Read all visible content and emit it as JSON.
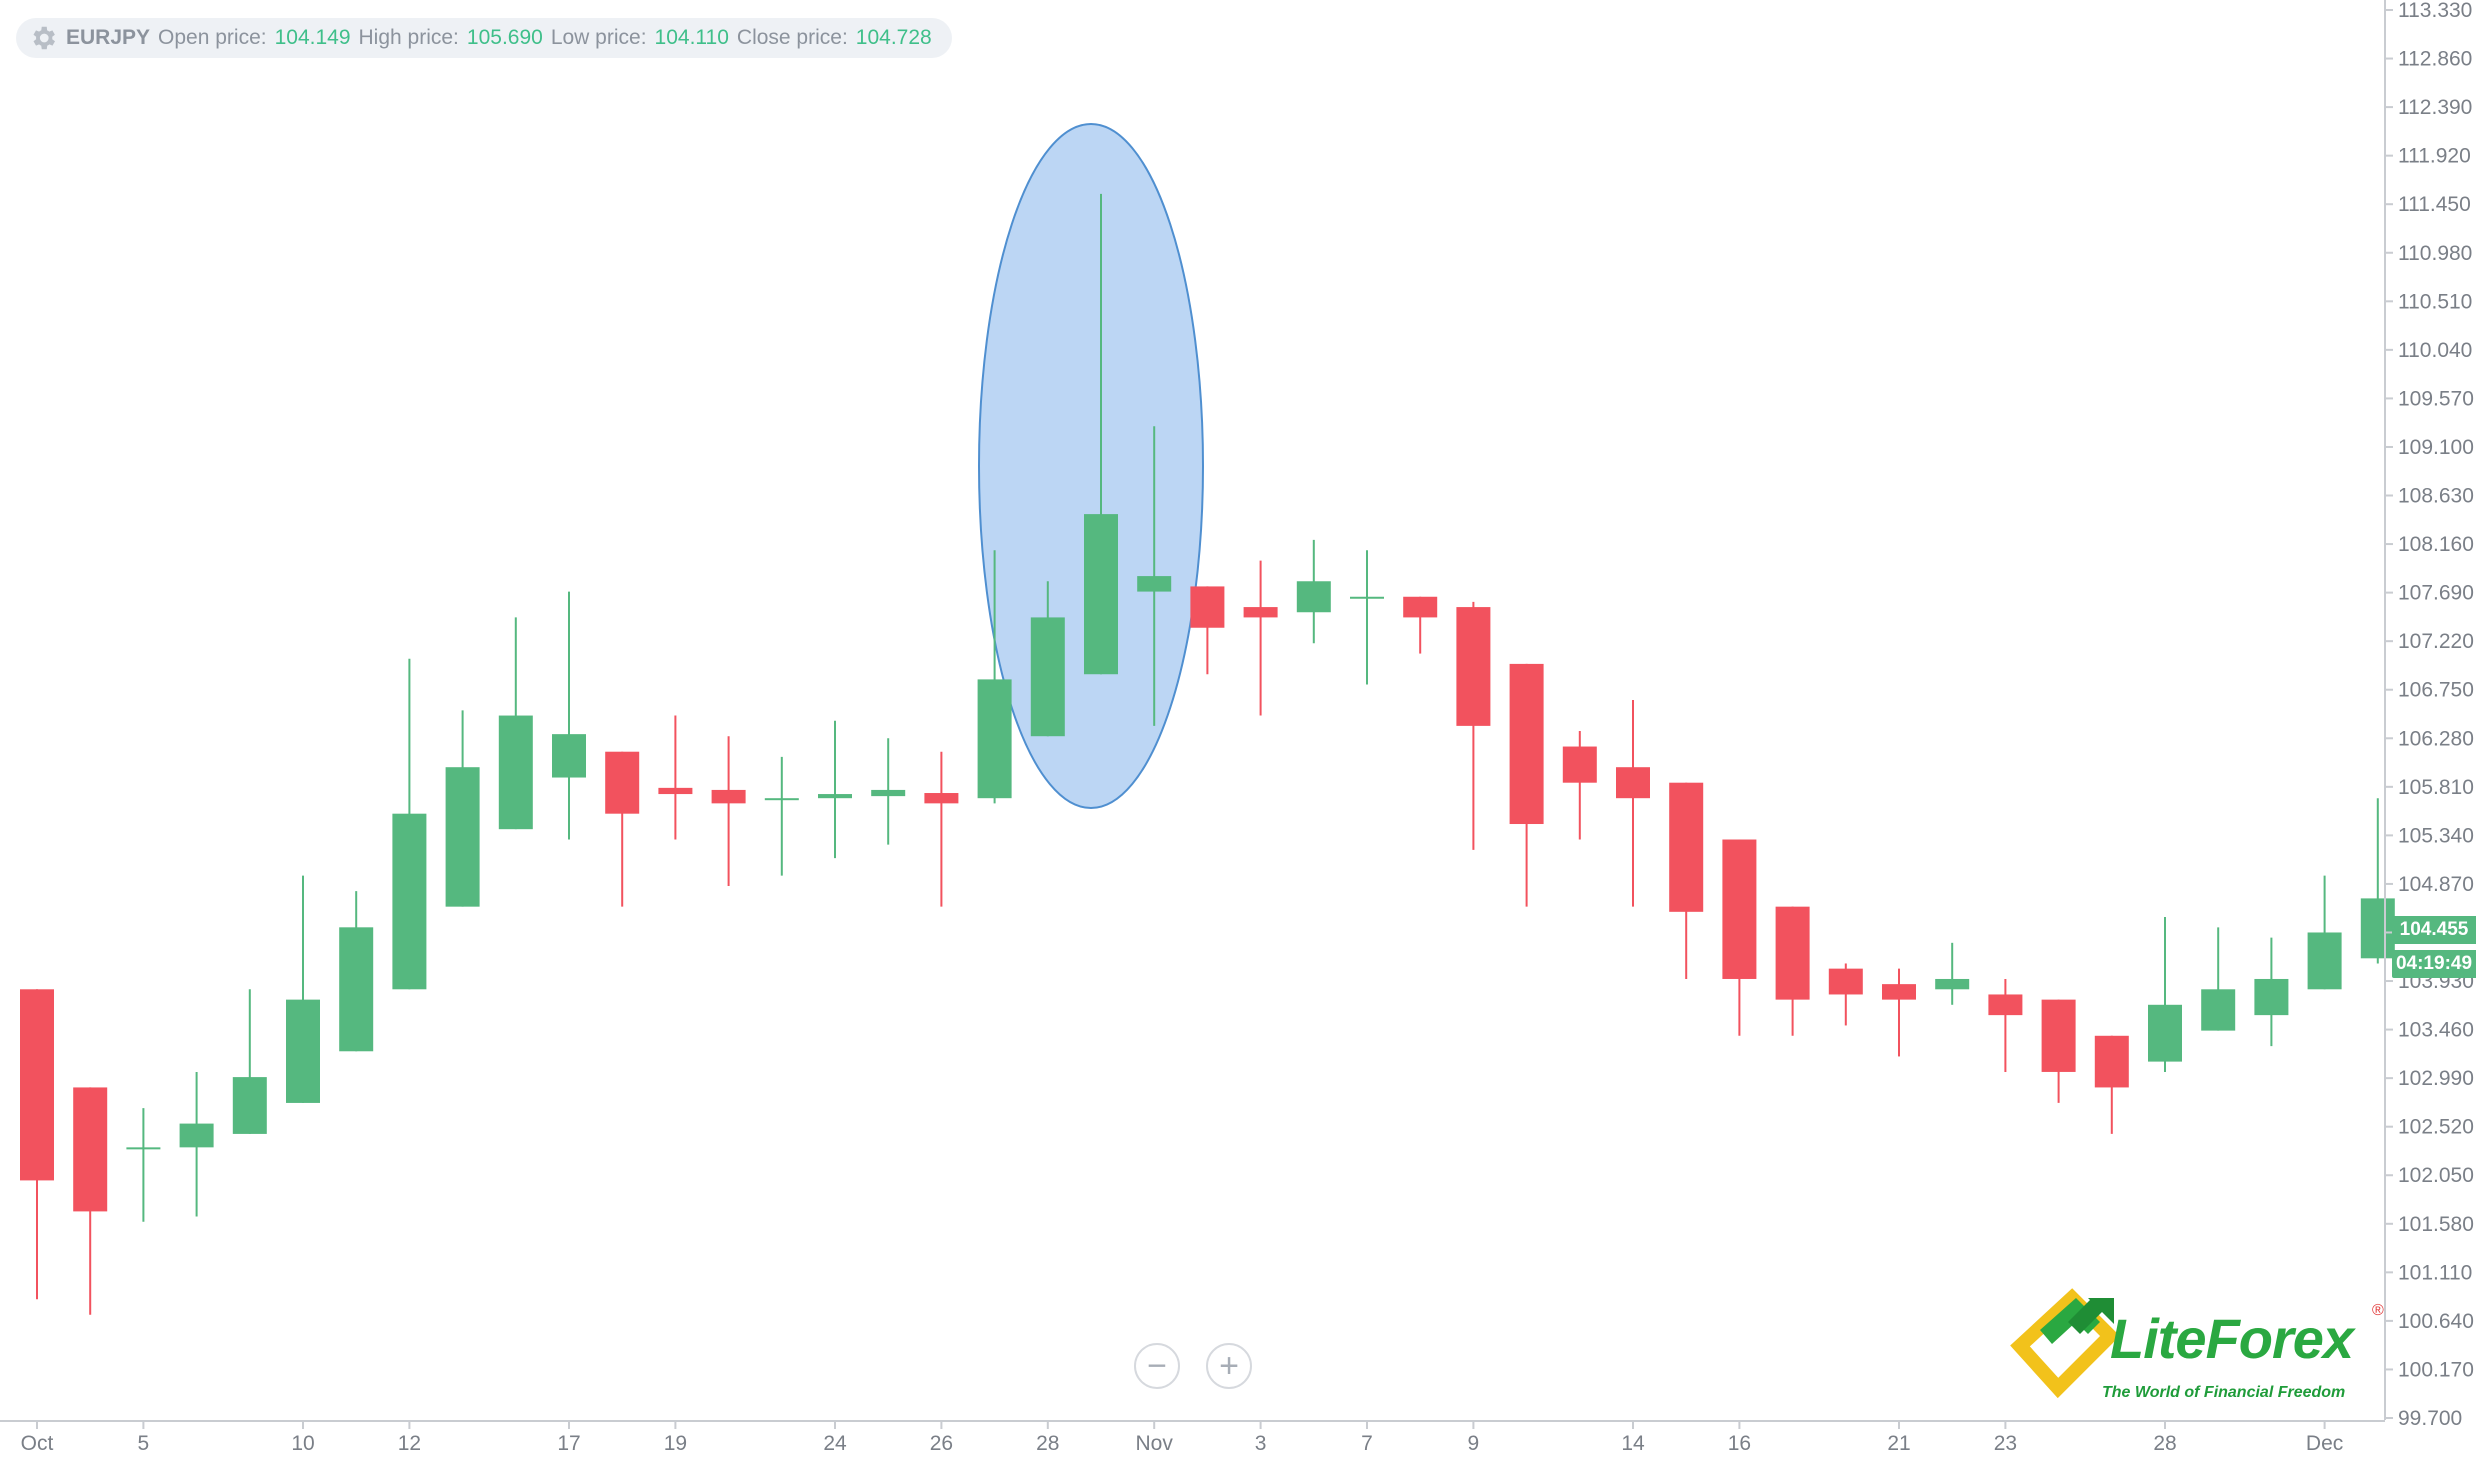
{
  "info": {
    "symbol": "EURJPY",
    "open_label": "Open price:",
    "open_value": "104.149",
    "high_label": "High price:",
    "high_value": "105.690",
    "low_label": "Low price:",
    "low_value": "104.110",
    "close_label": "Close price:",
    "close_value": "104.728"
  },
  "price_tag": {
    "price": "104.455",
    "timer": "04:19:49"
  },
  "zoom": {
    "out_label": "−",
    "in_label": "+"
  },
  "logo": {
    "name_part1": "Lite",
    "name_part2": "Forex",
    "registered": "®",
    "tagline": "The World of Financial Freedom"
  },
  "colors": {
    "up": "#55b87f",
    "down": "#f2525e",
    "highlight": "#9fc5ef",
    "highlight_stroke": "#4f8fd0",
    "grid_axis": "#c9ccd1"
  },
  "chart_data": {
    "type": "candlestick",
    "title": "",
    "symbol": "EURJPY",
    "ylim": [
      99.7,
      113.33
    ],
    "y_ticks": [
      "113.330",
      "112.860",
      "112.390",
      "111.920",
      "111.450",
      "110.980",
      "110.510",
      "110.040",
      "109.570",
      "109.100",
      "108.630",
      "108.160",
      "107.690",
      "107.220",
      "106.750",
      "106.280",
      "105.810",
      "105.340",
      "104.870",
      "104.400",
      "103.930",
      "103.460",
      "102.990",
      "102.520",
      "102.050",
      "101.580",
      "101.110",
      "100.640",
      "100.170",
      "99.700"
    ],
    "x_ticks": [
      {
        "label": "Oct",
        "index": 0
      },
      {
        "label": "5",
        "index": 2
      },
      {
        "label": "10",
        "index": 5
      },
      {
        "label": "12",
        "index": 7
      },
      {
        "label": "17",
        "index": 10
      },
      {
        "label": "19",
        "index": 12
      },
      {
        "label": "24",
        "index": 15
      },
      {
        "label": "26",
        "index": 17
      },
      {
        "label": "28",
        "index": 19
      },
      {
        "label": "Nov",
        "index": 21
      },
      {
        "label": "3",
        "index": 23
      },
      {
        "label": "7",
        "index": 25
      },
      {
        "label": "9",
        "index": 27
      },
      {
        "label": "14",
        "index": 30
      },
      {
        "label": "16",
        "index": 32
      },
      {
        "label": "21",
        "index": 35
      },
      {
        "label": "23",
        "index": 37
      },
      {
        "label": "28",
        "index": 40
      },
      {
        "label": "Dec",
        "index": 43
      }
    ],
    "candles": [
      {
        "o": 103.85,
        "h": 103.85,
        "l": 100.85,
        "c": 102.0
      },
      {
        "o": 102.9,
        "h": 102.9,
        "l": 100.7,
        "c": 101.7
      },
      {
        "o": 102.32,
        "h": 102.7,
        "l": 101.6,
        "c": 102.32
      },
      {
        "o": 102.32,
        "h": 103.05,
        "l": 101.65,
        "c": 102.55
      },
      {
        "o": 102.45,
        "h": 103.85,
        "l": 102.45,
        "c": 103.0
      },
      {
        "o": 102.75,
        "h": 104.95,
        "l": 102.75,
        "c": 103.75
      },
      {
        "o": 103.25,
        "h": 104.8,
        "l": 103.25,
        "c": 104.45
      },
      {
        "o": 103.85,
        "h": 107.05,
        "l": 103.85,
        "c": 105.55
      },
      {
        "o": 104.65,
        "h": 106.55,
        "l": 104.65,
        "c": 106.0
      },
      {
        "o": 105.4,
        "h": 107.45,
        "l": 105.4,
        "c": 106.5
      },
      {
        "o": 105.9,
        "h": 107.7,
        "l": 105.3,
        "c": 106.32
      },
      {
        "o": 106.15,
        "h": 106.15,
        "l": 104.65,
        "c": 105.55
      },
      {
        "o": 105.8,
        "h": 106.5,
        "l": 105.3,
        "c": 105.74
      },
      {
        "o": 105.78,
        "h": 106.3,
        "l": 104.85,
        "c": 105.65
      },
      {
        "o": 105.7,
        "h": 106.1,
        "l": 104.95,
        "c": 105.7
      },
      {
        "o": 105.7,
        "h": 106.45,
        "l": 105.12,
        "c": 105.74
      },
      {
        "o": 105.72,
        "h": 106.28,
        "l": 105.25,
        "c": 105.78
      },
      {
        "o": 105.75,
        "h": 106.15,
        "l": 104.65,
        "c": 105.65
      },
      {
        "o": 105.7,
        "h": 108.1,
        "l": 105.65,
        "c": 106.85
      },
      {
        "o": 106.3,
        "h": 107.8,
        "l": 106.3,
        "c": 107.45
      },
      {
        "o": 106.9,
        "h": 111.55,
        "l": 106.9,
        "c": 108.45
      },
      {
        "o": 107.7,
        "h": 109.3,
        "l": 106.4,
        "c": 107.85
      },
      {
        "o": 107.75,
        "h": 107.75,
        "l": 106.9,
        "c": 107.35
      },
      {
        "o": 107.55,
        "h": 108.0,
        "l": 106.5,
        "c": 107.45
      },
      {
        "o": 107.5,
        "h": 108.2,
        "l": 107.2,
        "c": 107.8
      },
      {
        "o": 107.65,
        "h": 108.1,
        "l": 106.8,
        "c": 107.65
      },
      {
        "o": 107.65,
        "h": 107.65,
        "l": 107.1,
        "c": 107.45
      },
      {
        "o": 107.55,
        "h": 107.6,
        "l": 105.2,
        "c": 106.4
      },
      {
        "o": 107.0,
        "h": 107.0,
        "l": 104.65,
        "c": 105.45
      },
      {
        "o": 106.2,
        "h": 106.35,
        "l": 105.3,
        "c": 105.85
      },
      {
        "o": 106.0,
        "h": 106.65,
        "l": 104.65,
        "c": 105.7
      },
      {
        "o": 105.85,
        "h": 105.85,
        "l": 103.95,
        "c": 104.6
      },
      {
        "o": 105.3,
        "h": 105.3,
        "l": 103.4,
        "c": 103.95
      },
      {
        "o": 104.65,
        "h": 104.65,
        "l": 103.4,
        "c": 103.75
      },
      {
        "o": 104.05,
        "h": 104.1,
        "l": 103.5,
        "c": 103.8
      },
      {
        "o": 103.9,
        "h": 104.05,
        "l": 103.2,
        "c": 103.75
      },
      {
        "o": 103.85,
        "h": 104.3,
        "l": 103.7,
        "c": 103.95
      },
      {
        "o": 103.8,
        "h": 103.95,
        "l": 103.05,
        "c": 103.6
      },
      {
        "o": 103.75,
        "h": 103.75,
        "l": 102.75,
        "c": 103.05
      },
      {
        "o": 103.4,
        "h": 103.4,
        "l": 102.45,
        "c": 102.9
      },
      {
        "o": 103.15,
        "h": 104.55,
        "l": 103.05,
        "c": 103.7
      },
      {
        "o": 103.45,
        "h": 104.45,
        "l": 103.45,
        "c": 103.85
      },
      {
        "o": 103.6,
        "h": 104.35,
        "l": 103.3,
        "c": 103.95
      },
      {
        "o": 103.85,
        "h": 104.95,
        "l": 103.85,
        "c": 104.4
      },
      {
        "o": 104.15,
        "h": 105.7,
        "l": 104.1,
        "c": 104.73
      }
    ]
  }
}
